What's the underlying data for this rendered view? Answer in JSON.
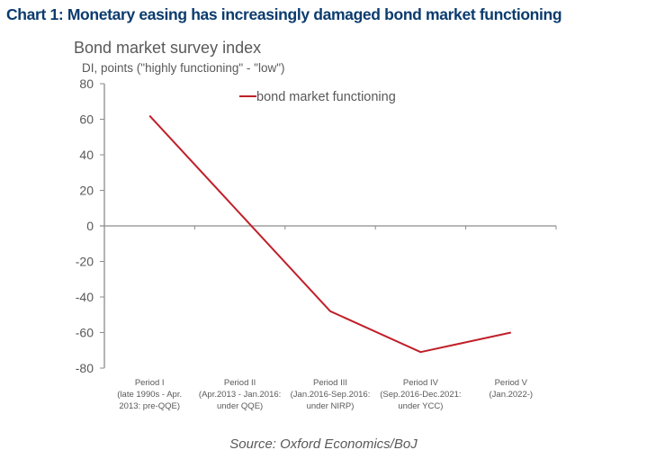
{
  "title": "Chart 1: Monetary easing has increasingly damaged bond market functioning",
  "subtitle": "Bond market survey index",
  "units": "DI, points (\"highly functioning\" - \"low\")",
  "source": "Source: Oxford Economics/BoJ",
  "colors": {
    "title": "#0b3b6e",
    "series": "#c0202a",
    "axis": "#8c8c8c",
    "text": "#595959"
  },
  "chart_data": {
    "type": "line",
    "title": "Bond market survey index",
    "ylabel": "DI, points (\"highly functioning\" - \"low\")",
    "xlabel": "",
    "ylim": [
      -80,
      80
    ],
    "yticks": [
      80,
      60,
      40,
      20,
      0,
      -20,
      -40,
      -60,
      -80
    ],
    "grid": false,
    "legend_position": "top-center",
    "categories": [
      [
        "Period I",
        "(late 1990s - Apr.",
        "2013:  pre-QQE)"
      ],
      [
        "Period II",
        "(Apr.2013 - Jan.2016:",
        "under QQE)"
      ],
      [
        "Period III",
        "(Jan.2016-Sep.2016:",
        "under NIRP)"
      ],
      [
        "Period IV",
        "(Sep.2016-Dec.2021:",
        "under YCC)"
      ],
      [
        "Period V",
        "(Jan.2022-)"
      ]
    ],
    "series": [
      {
        "name": "bond market functioning",
        "color": "#c0202a",
        "values": [
          62,
          7,
          -48,
          -71,
          -60
        ]
      }
    ]
  }
}
